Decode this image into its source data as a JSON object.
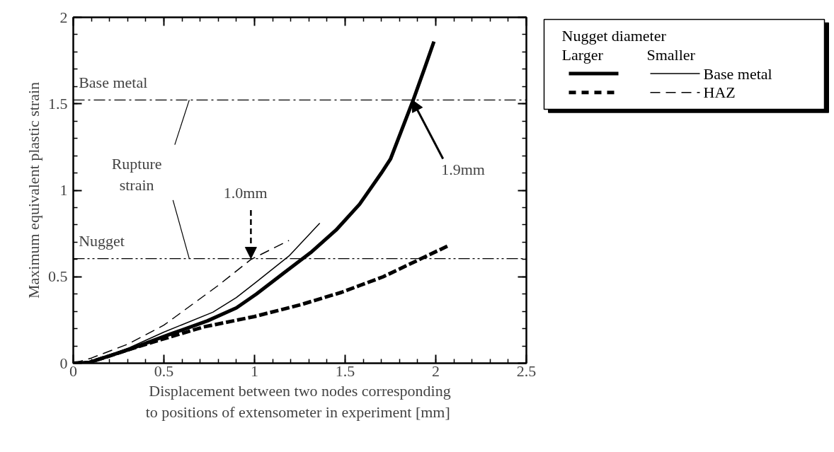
{
  "chart_data": {
    "type": "line",
    "xlabel": "Displacement between two nodes corresponding\nto positions of extensometer in experiment  [mm]",
    "ylabel": "Maximum equivalent plastic strain",
    "legend_title": "Nugget diameter",
    "series": [
      {
        "color": "#000000",
        "line_style": "solid",
        "x": [
          0,
          0.086,
          0.31,
          0.54,
          0.74,
          0.9,
          1.01,
          1.16,
          1.31,
          1.45,
          1.58,
          1.7,
          1.75,
          1.875,
          1.94,
          1.99
        ],
        "values": [
          0,
          0.004,
          0.08,
          0.17,
          0.245,
          0.32,
          0.4,
          0.52,
          0.64,
          0.77,
          0.92,
          1.1,
          1.18,
          1.52,
          1.71,
          1.86
        ]
      },
      {
        "name": "Base metal",
        "color": "#000000",
        "line_style": "solid",
        "x": [
          0,
          0.086,
          0.31,
          0.5,
          0.77,
          0.9,
          1.01,
          1.19,
          1.36
        ],
        "values": [
          0,
          0.004,
          0.09,
          0.18,
          0.295,
          0.38,
          0.47,
          0.62,
          0.81
        ]
      },
      {
        "color": "#000000",
        "line_style": "dashed",
        "x": [
          0,
          0.086,
          0.31,
          0.48,
          0.72,
          1.0,
          1.26,
          1.48,
          1.71,
          1.91,
          2.07
        ],
        "values": [
          0,
          0.004,
          0.08,
          0.135,
          0.21,
          0.27,
          0.34,
          0.41,
          0.5,
          0.6,
          0.68
        ]
      },
      {
        "name": "HAZ",
        "color": "#000000",
        "line_style": "dashed",
        "x": [
          0,
          0.1,
          0.3,
          0.5,
          0.8,
          0.98,
          1.19
        ],
        "values": [
          0,
          0.03,
          0.11,
          0.22,
          0.45,
          0.6,
          0.71
        ]
      }
    ],
    "xlim": [
      0,
      2.5
    ],
    "ylim": [
      0,
      2
    ],
    "xticks": [
      0,
      0.5,
      1,
      1.5,
      2,
      2.5
    ],
    "yticks": [
      0,
      0.5,
      1,
      1.5,
      2
    ],
    "grid": false,
    "legend": "right",
    "marker": "none",
    "ref_lines": [
      {
        "axis": "y",
        "value": 1.522,
        "label": "Base metal",
        "line_style": "dashdot"
      },
      {
        "axis": "y",
        "value": 0.605,
        "label": "Nugget",
        "line_style": "dashdotdot"
      }
    ],
    "annotations": [
      "Larger",
      "Smaller",
      {
        "text": "Rupture\nstrain",
        "x": 0.64,
        "y": 1.522
      },
      {
        "text": "1.0mm",
        "x": 0.98,
        "y": 0.605
      },
      {
        "text": "1.9mm",
        "x": 1.87,
        "y": 1.522
      }
    ]
  }
}
